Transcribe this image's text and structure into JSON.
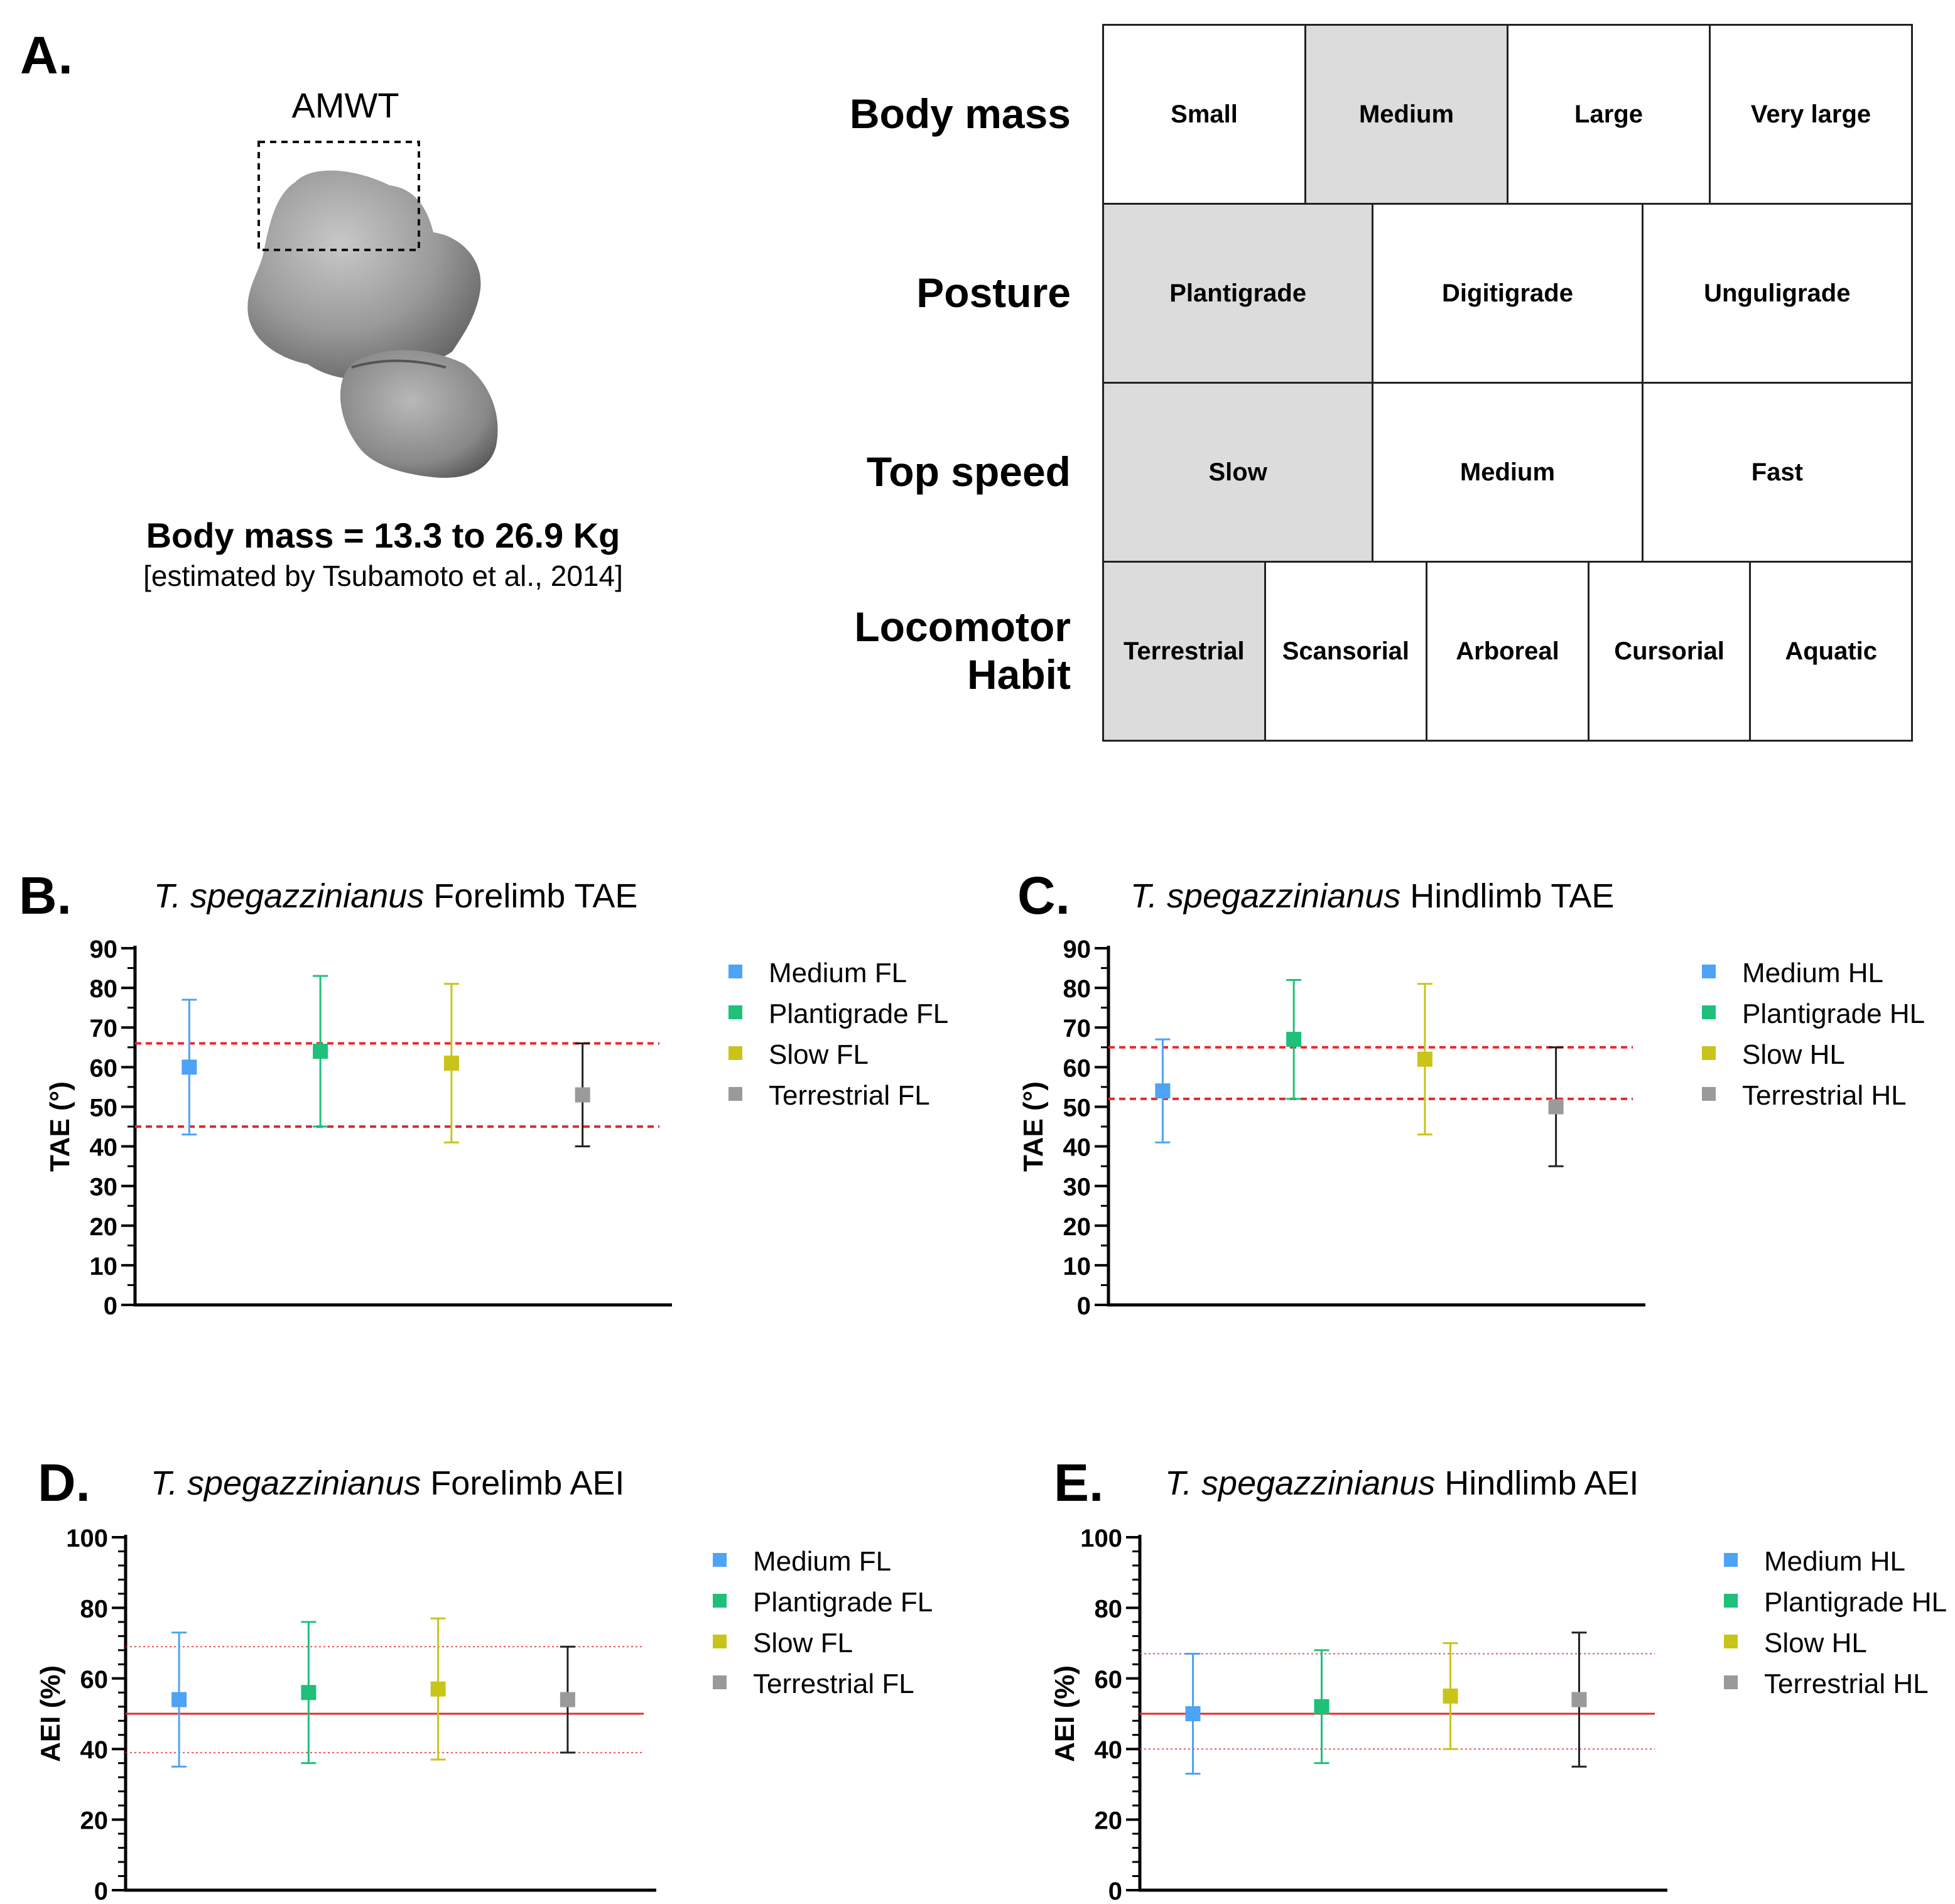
{
  "panel_a": {
    "letter": "A.",
    "bone_label": "AMWT",
    "body_mass_text": "Body mass = 13.3 to 26.9 Kg",
    "estimate_text": "[estimated by Tsubamoto et al., 2014]",
    "table": [
      {
        "label": "Body mass",
        "cells": [
          {
            "text": "Small",
            "selected": false
          },
          {
            "text": "Medium",
            "selected": true
          },
          {
            "text": "Large",
            "selected": false
          },
          {
            "text": "Very large",
            "selected": false
          }
        ]
      },
      {
        "label": "Posture",
        "cells": [
          {
            "text": "Plantigrade",
            "selected": true
          },
          {
            "text": "Digitigrade",
            "selected": false
          },
          {
            "text": "Unguligrade",
            "selected": false
          }
        ]
      },
      {
        "label": "Top speed",
        "cells": [
          {
            "text": "Slow",
            "selected": true
          },
          {
            "text": "Medium",
            "selected": false
          },
          {
            "text": "Fast",
            "selected": false
          }
        ]
      },
      {
        "label": "Locomotor\nHabit",
        "cells": [
          {
            "text": "Terrestrial",
            "selected": true
          },
          {
            "text": "Scansorial",
            "selected": false
          },
          {
            "text": "Arboreal",
            "selected": false
          },
          {
            "text": "Cursorial",
            "selected": false
          },
          {
            "text": "Aquatic",
            "selected": false
          }
        ]
      }
    ]
  },
  "colors": {
    "medium": "#4da3f5",
    "plantigrade": "#1ec07a",
    "slow": "#c9c41a",
    "terrestrial": "#9a9a9a",
    "terrestrial_bar": "#222222",
    "ref_line": "#e8282d"
  },
  "chart_data": [
    {
      "id": "B",
      "letter": "B.",
      "type": "scatter",
      "title_italic": "T. spegazzinianus",
      "title_rest": " Forelimb TAE",
      "ylabel": "TAE (°)",
      "ylim": [
        0,
        90
      ],
      "yticks": [
        0,
        10,
        20,
        30,
        40,
        50,
        60,
        70,
        80,
        90
      ],
      "minor_ticks_per_major": 1,
      "ref_lines": [
        {
          "y": 66,
          "style": "dashed"
        },
        {
          "y": 45,
          "style": "dashed"
        }
      ],
      "series": [
        {
          "name": "Medium FL",
          "color_key": "medium",
          "value": 60,
          "low": 43,
          "high": 77
        },
        {
          "name": "Plantigrade FL",
          "color_key": "plantigrade",
          "value": 64,
          "low": 45,
          "high": 83
        },
        {
          "name": "Slow FL",
          "color_key": "slow",
          "value": 61,
          "low": 41,
          "high": 81
        },
        {
          "name": "Terrestrial FL",
          "color_key": "terrestrial",
          "value": 53,
          "low": 40,
          "high": 66
        }
      ]
    },
    {
      "id": "C",
      "letter": "C.",
      "type": "scatter",
      "title_italic": "T. spegazzinianus",
      "title_rest": " Hindlimb TAE",
      "ylabel": "TAE (°)",
      "ylim": [
        0,
        90
      ],
      "yticks": [
        0,
        10,
        20,
        30,
        40,
        50,
        60,
        70,
        80,
        90
      ],
      "minor_ticks_per_major": 1,
      "ref_lines": [
        {
          "y": 65,
          "style": "dashed"
        },
        {
          "y": 52,
          "style": "dashed"
        }
      ],
      "series": [
        {
          "name": "Medium HL",
          "color_key": "medium",
          "value": 54,
          "low": 41,
          "high": 67
        },
        {
          "name": "Plantigrade HL",
          "color_key": "plantigrade",
          "value": 67,
          "low": 52,
          "high": 82
        },
        {
          "name": "Slow HL",
          "color_key": "slow",
          "value": 62,
          "low": 43,
          "high": 81
        },
        {
          "name": "Terrestrial HL",
          "color_key": "terrestrial",
          "value": 50,
          "low": 35,
          "high": 65
        }
      ]
    },
    {
      "id": "D",
      "letter": "D.",
      "type": "scatter",
      "title_italic": "T. spegazzinianus",
      "title_rest": " Forelimb AEI",
      "ylabel": "AEI (%)",
      "ylim": [
        0,
        100
      ],
      "yticks": [
        0,
        20,
        40,
        60,
        80,
        100
      ],
      "minor_ticks_per_major": 4,
      "ref_lines": [
        {
          "y": 69,
          "style": "dotted"
        },
        {
          "y": 50,
          "style": "solid"
        },
        {
          "y": 39,
          "style": "dotted"
        }
      ],
      "series": [
        {
          "name": "Medium FL",
          "color_key": "medium",
          "value": 54,
          "low": 35,
          "high": 73
        },
        {
          "name": "Plantigrade FL",
          "color_key": "plantigrade",
          "value": 56,
          "low": 36,
          "high": 76
        },
        {
          "name": "Slow FL",
          "color_key": "slow",
          "value": 57,
          "low": 37,
          "high": 77
        },
        {
          "name": "Terrestrial FL",
          "color_key": "terrestrial",
          "value": 54,
          "low": 39,
          "high": 69
        }
      ]
    },
    {
      "id": "E",
      "letter": "E.",
      "type": "scatter",
      "title_italic": "T. spegazzinianus",
      "title_rest": " Hindlimb AEI",
      "ylabel": "AEI (%)",
      "ylim": [
        0,
        100
      ],
      "yticks": [
        0,
        20,
        40,
        60,
        80,
        100
      ],
      "minor_ticks_per_major": 4,
      "ref_lines": [
        {
          "y": 67,
          "style": "dotted"
        },
        {
          "y": 50,
          "style": "solid"
        },
        {
          "y": 40,
          "style": "dotted"
        }
      ],
      "series": [
        {
          "name": "Medium HL",
          "color_key": "medium",
          "value": 50,
          "low": 33,
          "high": 67
        },
        {
          "name": "Plantigrade HL",
          "color_key": "plantigrade",
          "value": 52,
          "low": 36,
          "high": 68
        },
        {
          "name": "Slow HL",
          "color_key": "slow",
          "value": 55,
          "low": 40,
          "high": 70
        },
        {
          "name": "Terrestrial HL",
          "color_key": "terrestrial",
          "value": 54,
          "low": 35,
          "high": 73
        }
      ]
    }
  ]
}
